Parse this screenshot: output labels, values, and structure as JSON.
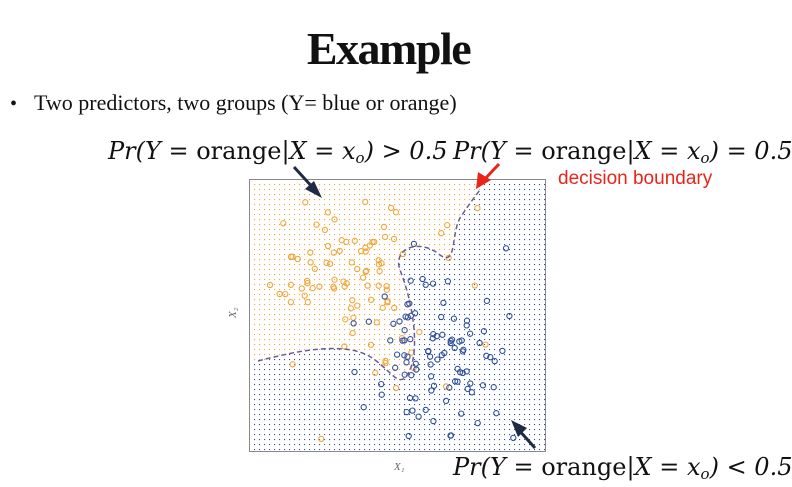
{
  "slide": {
    "title": "Example",
    "bullet": "Two predictors, two groups (Y= blue or orange)"
  },
  "annotations": {
    "formula_prefix": "Pr(Y = ",
    "formula_word": "orange",
    "formula_mid": "|X = x",
    "formula_sub": "o",
    "formula_gt_tail": ") > 0.5",
    "formula_eq_tail": ") = 0.5",
    "formula_lt_tail": ") < 0.5",
    "decision_boundary_label": "decision boundary"
  },
  "plot": {
    "x_label": "X₁",
    "y_label": "X₂"
  },
  "colors": {
    "orange": "#f0a63a",
    "blue": "#2f4f9e",
    "boundary": "#6a5a9a",
    "arrow_dark": "#1f2a44",
    "arrow_red": "#e8251b",
    "frame": "#888888"
  },
  "icons": {
    "bullet": "bullet-dot-icon",
    "arrow_gt": "dark-arrow-icon",
    "arrow_eq": "red-arrow-icon",
    "arrow_lt": "dark-arrow-icon"
  }
}
